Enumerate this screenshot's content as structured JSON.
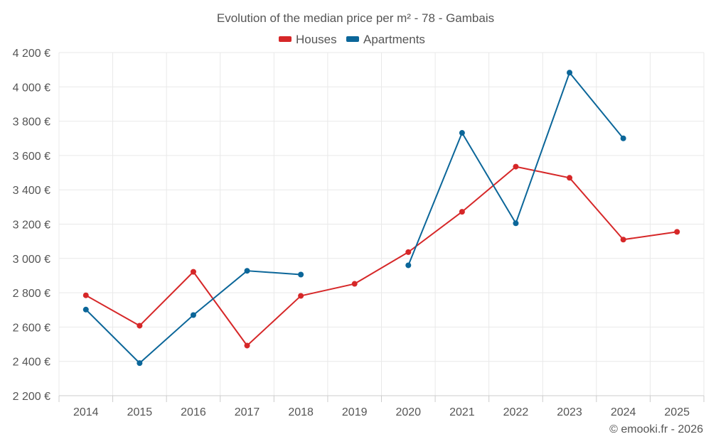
{
  "chart_data": {
    "type": "line",
    "title": "Evolution of the median price per m² - 78 - Gambais",
    "credit": "© emooki.fr - 2026",
    "categories": [
      "2014",
      "2015",
      "2016",
      "2017",
      "2018",
      "2019",
      "2020",
      "2021",
      "2022",
      "2023",
      "2024",
      "2025"
    ],
    "ylim": [
      2200,
      4200
    ],
    "yticks": [
      2200,
      2400,
      2600,
      2800,
      3000,
      3200,
      3400,
      3600,
      3800,
      4000,
      4200
    ],
    "ytick_labels": [
      "2 200 €",
      "2 400 €",
      "2 600 €",
      "2 800 €",
      "3 000 €",
      "3 200 €",
      "3 400 €",
      "3 600 €",
      "3 800 €",
      "4 000 €",
      "4 200 €"
    ],
    "legend_position": "top-center",
    "grid": true,
    "series": [
      {
        "name": "Houses",
        "color": "#d62728",
        "values": [
          2785,
          2608,
          2922,
          2492,
          2782,
          2852,
          3037,
          3272,
          3535,
          3470,
          3110,
          3155
        ]
      },
      {
        "name": "Apartments",
        "color": "#0b6699",
        "values": [
          2702,
          2390,
          2670,
          2928,
          2906,
          null,
          2960,
          3732,
          3205,
          4083,
          3700,
          null
        ]
      }
    ]
  }
}
